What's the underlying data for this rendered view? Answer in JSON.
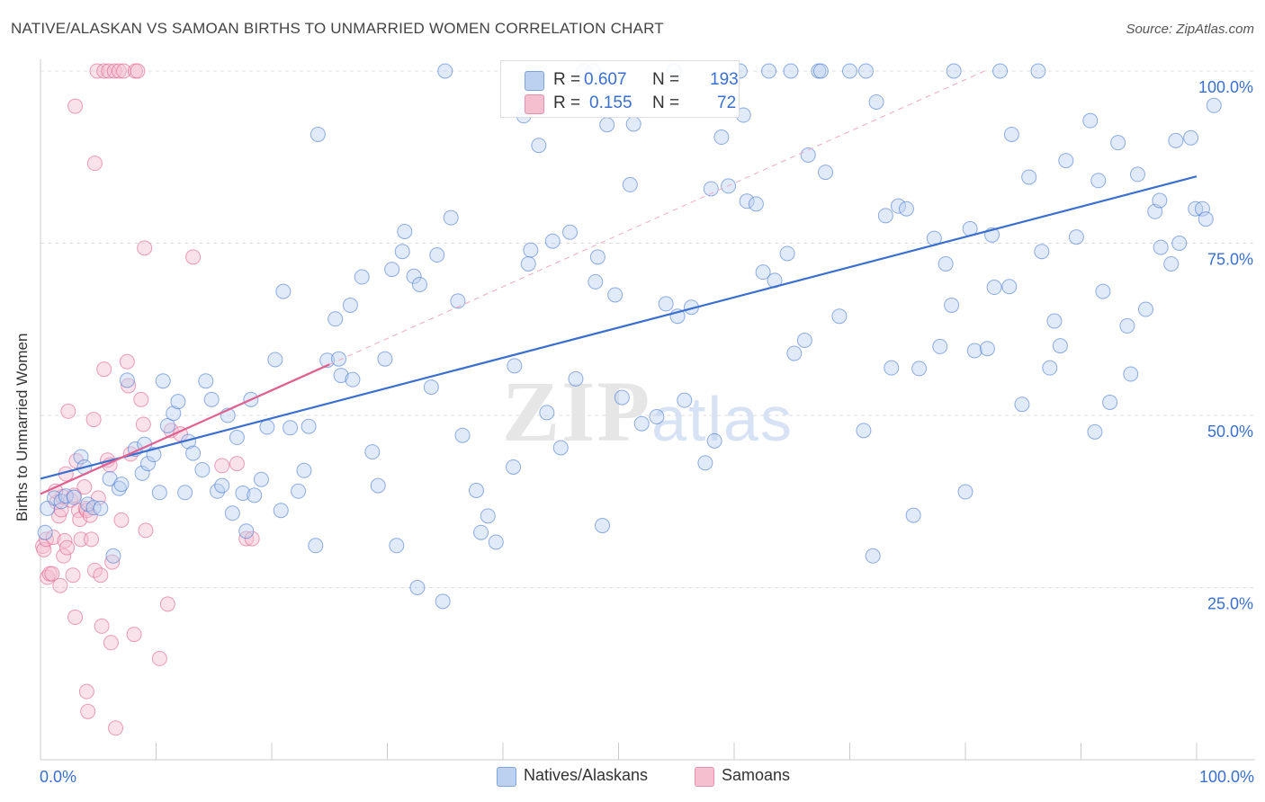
{
  "title": "NATIVE/ALASKAN VS SAMOAN BIRTHS TO UNMARRIED WOMEN CORRELATION CHART",
  "source": "Source: ZipAtlas.com",
  "watermark": "ZIPatlas",
  "colors": {
    "blue": "#3a6fcf",
    "blue_fill": "#bcd1f0",
    "pink": "#e06090",
    "pink_fill": "#f5bfd0",
    "grid": "#dddddd",
    "axis_text": "#3a6fcf"
  },
  "legend": {
    "r_label": "R =",
    "n_label": "N =",
    "series": [
      {
        "r": "0.607",
        "n": "193"
      },
      {
        "r": "0.155",
        "n": "72"
      }
    ]
  },
  "bottom_legend": [
    "Natives/Alaskans",
    "Samoans"
  ],
  "chart_data": {
    "type": "scatter",
    "title": "NATIVE/ALASKAN VS SAMOAN BIRTHS TO UNMARRIED WOMEN CORRELATION CHART",
    "xlabel": "",
    "ylabel": "Births to Unmarried Women",
    "xlim": [
      0,
      100
    ],
    "ylim": [
      0,
      100
    ],
    "x_tick_labels": [
      "0.0%",
      "100.0%"
    ],
    "y_tick_values": [
      25,
      50,
      75,
      100
    ],
    "y_tick_labels": [
      "25.0%",
      "50.0%",
      "75.0%",
      "100.0%"
    ],
    "series": [
      {
        "name": "Natives/Alaskans",
        "color": "#3a6fcf",
        "trend": {
          "x": [
            0,
            100
          ],
          "y": [
            40.8,
            84.7
          ]
        },
        "points": [
          [
            0.4,
            33.0
          ],
          [
            0.6,
            36.5
          ],
          [
            1.2,
            38.0
          ],
          [
            1.8,
            37.5
          ],
          [
            2.2,
            38.3
          ],
          [
            2.9,
            38.1
          ],
          [
            3.5,
            44.0
          ],
          [
            3.8,
            42.5
          ],
          [
            4.1,
            37.1
          ],
          [
            4.6,
            36.6
          ],
          [
            5.2,
            36.5
          ],
          [
            6.0,
            40.8
          ],
          [
            6.3,
            29.6
          ],
          [
            6.8,
            39.4
          ],
          [
            7.0,
            40.0
          ],
          [
            7.5,
            55.1
          ],
          [
            8.2,
            45.1
          ],
          [
            8.8,
            41.6
          ],
          [
            9.0,
            45.8
          ],
          [
            9.3,
            43.0
          ],
          [
            9.8,
            44.3
          ],
          [
            10.3,
            38.8
          ],
          [
            10.6,
            55.0
          ],
          [
            11.0,
            48.5
          ],
          [
            11.5,
            50.3
          ],
          [
            11.9,
            52.0
          ],
          [
            12.5,
            38.8
          ],
          [
            12.8,
            46.2
          ],
          [
            13.2,
            44.5
          ],
          [
            14.0,
            42.1
          ],
          [
            14.3,
            55.0
          ],
          [
            14.8,
            52.3
          ],
          [
            15.3,
            39.0
          ],
          [
            15.7,
            39.8
          ],
          [
            16.2,
            50.0
          ],
          [
            16.6,
            35.8
          ],
          [
            17.0,
            46.8
          ],
          [
            17.5,
            38.7
          ],
          [
            17.8,
            33.2
          ],
          [
            18.2,
            52.3
          ],
          [
            18.5,
            38.4
          ],
          [
            19.1,
            40.7
          ],
          [
            19.6,
            48.3
          ],
          [
            20.3,
            58.1
          ],
          [
            20.8,
            36.2
          ],
          [
            21.0,
            68.0
          ],
          [
            21.6,
            48.2
          ],
          [
            22.3,
            39.0
          ],
          [
            22.8,
            42.0
          ],
          [
            23.2,
            48.4
          ],
          [
            23.8,
            31.1
          ],
          [
            24.0,
            90.8
          ],
          [
            24.8,
            58.0
          ],
          [
            25.5,
            64.0
          ],
          [
            25.8,
            58.2
          ],
          [
            26.0,
            55.8
          ],
          [
            26.8,
            66.0
          ],
          [
            27.0,
            55.2
          ],
          [
            27.8,
            70.1
          ],
          [
            28.7,
            44.7
          ],
          [
            29.2,
            39.8
          ],
          [
            29.8,
            58.2
          ],
          [
            30.4,
            71.2
          ],
          [
            30.8,
            31.1
          ],
          [
            31.3,
            73.8
          ],
          [
            31.5,
            76.7
          ],
          [
            32.3,
            70.2
          ],
          [
            32.6,
            25.0
          ],
          [
            32.8,
            69.0
          ],
          [
            33.8,
            54.1
          ],
          [
            34.3,
            73.3
          ],
          [
            34.8,
            23.0
          ],
          [
            35.0,
            100
          ],
          [
            35.5,
            78.7
          ],
          [
            36.1,
            66.6
          ],
          [
            36.5,
            47.1
          ],
          [
            37.7,
            39.1
          ],
          [
            38.1,
            33.0
          ],
          [
            38.7,
            35.4
          ],
          [
            39.4,
            31.6
          ],
          [
            40.9,
            42.5
          ],
          [
            41.0,
            57.2
          ],
          [
            41.8,
            93.5
          ],
          [
            42.2,
            72.0
          ],
          [
            42.4,
            74.0
          ],
          [
            43.1,
            89.2
          ],
          [
            43.8,
            50.4
          ],
          [
            44.3,
            75.3
          ],
          [
            45.0,
            45.3
          ],
          [
            45.8,
            76.6
          ],
          [
            46.3,
            55.3
          ],
          [
            47.0,
            100
          ],
          [
            47.8,
            100
          ],
          [
            48.0,
            69.4
          ],
          [
            48.2,
            73.0
          ],
          [
            48.6,
            34.0
          ],
          [
            49.0,
            92.2
          ],
          [
            49.7,
            67.5
          ],
          [
            50.3,
            52.6
          ],
          [
            51.0,
            83.5
          ],
          [
            51.3,
            92.3
          ],
          [
            52.0,
            48.8
          ],
          [
            53.3,
            49.8
          ],
          [
            54.1,
            66.2
          ],
          [
            54.8,
            100
          ],
          [
            55.1,
            64.4
          ],
          [
            55.7,
            52.2
          ],
          [
            56.3,
            65.7
          ],
          [
            57.5,
            43.1
          ],
          [
            58.0,
            82.9
          ],
          [
            58.3,
            46.3
          ],
          [
            58.9,
            90.4
          ],
          [
            59.5,
            83.3
          ],
          [
            60.5,
            100
          ],
          [
            60.8,
            93.6
          ],
          [
            61.1,
            81.1
          ],
          [
            61.9,
            80.7
          ],
          [
            62.5,
            70.8
          ],
          [
            63.0,
            100
          ],
          [
            63.5,
            69.6
          ],
          [
            64.6,
            73.5
          ],
          [
            64.9,
            100
          ],
          [
            65.2,
            59.0
          ],
          [
            66.1,
            60.9
          ],
          [
            66.4,
            87.8
          ],
          [
            67.3,
            100
          ],
          [
            67.5,
            100
          ],
          [
            67.9,
            85.3
          ],
          [
            69.1,
            64.4
          ],
          [
            70.0,
            100
          ],
          [
            71.2,
            47.8
          ],
          [
            72.0,
            29.6
          ],
          [
            71.4,
            100
          ],
          [
            72.3,
            95.5
          ],
          [
            73.1,
            79.0
          ],
          [
            73.6,
            56.9
          ],
          [
            74.2,
            80.4
          ],
          [
            74.9,
            80.0
          ],
          [
            75.5,
            35.5
          ],
          [
            76.0,
            56.8
          ],
          [
            77.3,
            75.7
          ],
          [
            77.8,
            60.0
          ],
          [
            78.3,
            72.0
          ],
          [
            78.8,
            66.0
          ],
          [
            79.0,
            100
          ],
          [
            80.0,
            38.9
          ],
          [
            80.4,
            77.1
          ],
          [
            80.8,
            59.4
          ],
          [
            81.9,
            59.7
          ],
          [
            83.0,
            100
          ],
          [
            82.3,
            76.2
          ],
          [
            82.5,
            68.6
          ],
          [
            83.8,
            68.7
          ],
          [
            84.0,
            90.8
          ],
          [
            84.9,
            51.6
          ],
          [
            85.5,
            84.6
          ],
          [
            86.3,
            100
          ],
          [
            86.6,
            73.8
          ],
          [
            87.3,
            56.9
          ],
          [
            87.7,
            63.7
          ],
          [
            88.2,
            60.1
          ],
          [
            88.7,
            87.0
          ],
          [
            89.6,
            75.9
          ],
          [
            90.8,
            92.8
          ],
          [
            91.2,
            47.6
          ],
          [
            91.5,
            84.1
          ],
          [
            91.9,
            68.0
          ],
          [
            92.5,
            51.9
          ],
          [
            93.2,
            89.6
          ],
          [
            94.0,
            63.0
          ],
          [
            94.3,
            56.0
          ],
          [
            94.9,
            85.0
          ],
          [
            95.6,
            65.4
          ],
          [
            96.4,
            79.6
          ],
          [
            96.8,
            81.2
          ],
          [
            96.9,
            74.4
          ],
          [
            97.8,
            72.0
          ],
          [
            98.2,
            89.9
          ],
          [
            98.5,
            75.0
          ],
          [
            99.5,
            90.3
          ],
          [
            99.9,
            80.0
          ],
          [
            100.5,
            80.0
          ],
          [
            100.8,
            78.5
          ],
          [
            101.5,
            95.0
          ]
        ]
      },
      {
        "name": "Samoans",
        "color": "#e06090",
        "trend": {
          "x": [
            0,
            25
          ],
          "y": [
            38.6,
            57.4
          ]
        },
        "points": [
          [
            0.2,
            31.0
          ],
          [
            0.3,
            30.5
          ],
          [
            0.5,
            32.0
          ],
          [
            0.6,
            26.5
          ],
          [
            0.8,
            27.0
          ],
          [
            1.0,
            27.0
          ],
          [
            1.1,
            32.3
          ],
          [
            1.4,
            37.4
          ],
          [
            1.6,
            35.4
          ],
          [
            1.7,
            25.3
          ],
          [
            1.8,
            36.3
          ],
          [
            1.9,
            38.2
          ],
          [
            2.0,
            29.6
          ],
          [
            2.1,
            31.8
          ],
          [
            2.2,
            41.5
          ],
          [
            2.3,
            30.8
          ],
          [
            2.4,
            50.6
          ],
          [
            2.6,
            37.7
          ],
          [
            2.8,
            26.8
          ],
          [
            3.0,
            20.7
          ],
          [
            3.0,
            94.9
          ],
          [
            3.1,
            43.4
          ],
          [
            3.3,
            36.2
          ],
          [
            3.4,
            34.9
          ],
          [
            3.5,
            32.0
          ],
          [
            3.8,
            39.6
          ],
          [
            3.9,
            36.5
          ],
          [
            4.0,
            9.9
          ],
          [
            4.0,
            36.2
          ],
          [
            4.1,
            7.0
          ],
          [
            4.3,
            35.5
          ],
          [
            4.4,
            32.0
          ],
          [
            4.6,
            49.4
          ],
          [
            4.7,
            27.5
          ],
          [
            4.7,
            86.6
          ],
          [
            4.9,
            100
          ],
          [
            5.2,
            26.8
          ],
          [
            5.3,
            19.4
          ],
          [
            5.5,
            56.7
          ],
          [
            5.5,
            100
          ],
          [
            5.8,
            43.5
          ],
          [
            5.9,
            100
          ],
          [
            6.1,
            17.0
          ],
          [
            6.2,
            28.7
          ],
          [
            6.4,
            100
          ],
          [
            6.5,
            4.6
          ],
          [
            6.8,
            100
          ],
          [
            7.0,
            34.8
          ],
          [
            7.2,
            100
          ],
          [
            7.5,
            57.8
          ],
          [
            7.6,
            54.3
          ],
          [
            7.8,
            44.4
          ],
          [
            8.1,
            18.2
          ],
          [
            8.2,
            100
          ],
          [
            8.4,
            100
          ],
          [
            8.7,
            52.3
          ],
          [
            8.9,
            48.7
          ],
          [
            9.1,
            33.3
          ],
          [
            9.0,
            74.3
          ],
          [
            10.3,
            14.7
          ],
          [
            11.0,
            22.6
          ],
          [
            11.3,
            47.8
          ],
          [
            13.2,
            73.0
          ],
          [
            15.7,
            42.7
          ],
          [
            17.0,
            43.0
          ],
          [
            17.8,
            32.1
          ],
          [
            18.3,
            32.1
          ],
          [
            12.1,
            47.3
          ],
          [
            6.0,
            42.8
          ],
          [
            5.0,
            38.0
          ],
          [
            2.9,
            38.4
          ],
          [
            1.3,
            39.0
          ]
        ]
      }
    ]
  }
}
